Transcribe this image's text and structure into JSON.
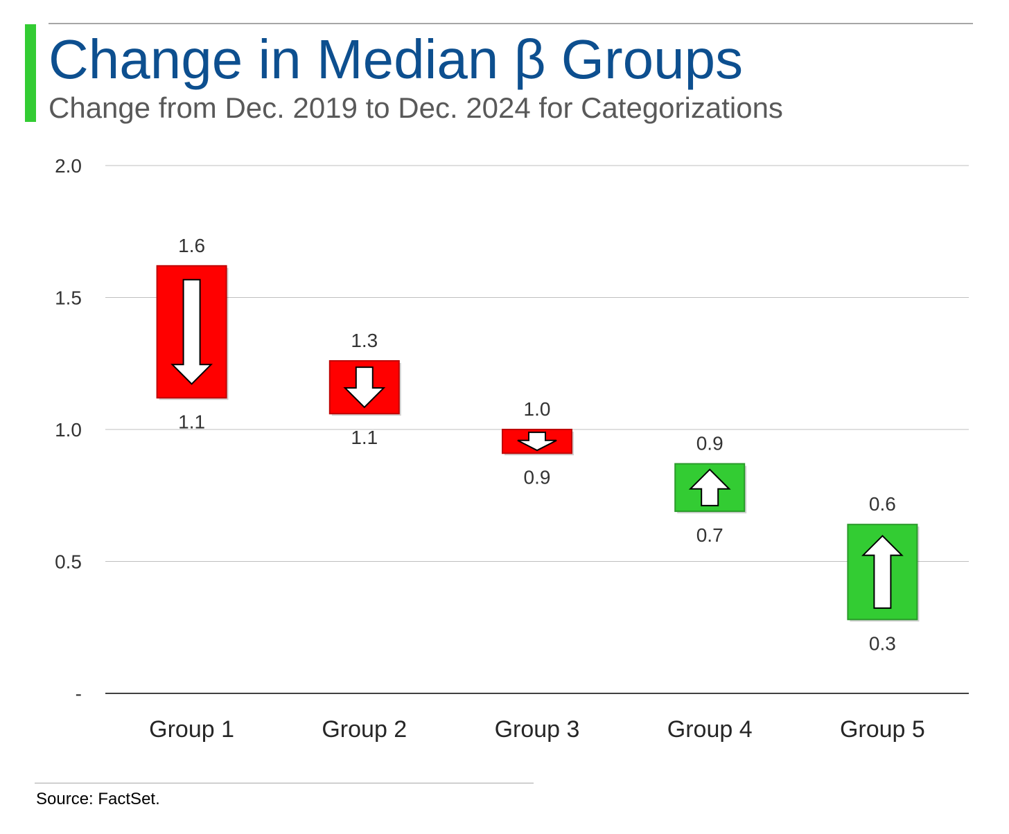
{
  "header": {
    "title": "Change in Median β Groups",
    "subtitle": "Change from Dec. 2019 to Dec. 2024 for Categorizations"
  },
  "footer": {
    "source": "Source: FactSet."
  },
  "colors": {
    "title": "#0d4f8f",
    "accent": "#33cc33",
    "decrease": "#ff0000",
    "decrease_border": "#c00000",
    "increase": "#33cc33",
    "increase_border": "#2a9a2a",
    "arrow_fill": "#ffffff",
    "arrow_stroke": "#000000",
    "gridline": "#bfbfbf",
    "axis_line": "#404040",
    "tick_label": "#333333",
    "data_label": "#333333",
    "category_label": "#262626"
  },
  "chart_data": {
    "type": "bar",
    "subtype": "floating-change",
    "title": "Change in Median β Groups",
    "subtitle": "Change from Dec. 2019 to Dec. 2024 for Categorizations",
    "xlabel": "",
    "ylabel": "",
    "ylim": [
      0,
      2.0
    ],
    "yticks": [
      0,
      0.5,
      1.0,
      1.5,
      2.0
    ],
    "ytick_labels": [
      "-",
      "0.5",
      "1.0",
      "1.5",
      "2.0"
    ],
    "grid": true,
    "legend": "none",
    "categories": [
      "Group 1",
      "Group 2",
      "Group 3",
      "Group 4",
      "Group 5"
    ],
    "series": [
      {
        "name": "Dec. 2019",
        "values": [
          1.62,
          1.26,
          1.0,
          0.69,
          0.28
        ]
      },
      {
        "name": "Dec. 2024",
        "values": [
          1.12,
          1.06,
          0.91,
          0.87,
          0.64
        ]
      }
    ],
    "top_labels": [
      "1.6",
      "1.3",
      "1.0",
      "0.9",
      "0.6"
    ],
    "bottom_labels": [
      "1.1",
      "1.1",
      "0.9",
      "0.7",
      "0.3"
    ],
    "direction": [
      "down",
      "down",
      "down",
      "up",
      "up"
    ]
  }
}
